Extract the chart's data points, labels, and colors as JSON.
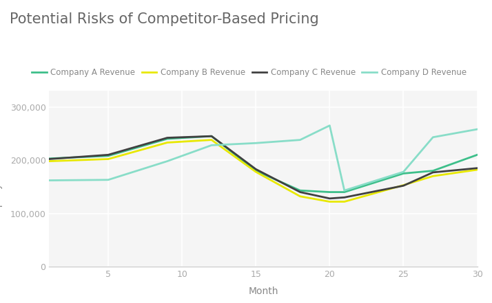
{
  "title": "Potential Risks of Competitor-Based Pricing",
  "xlabel": "Month",
  "ylabel": "Company A Revenue",
  "x": [
    1,
    5,
    9,
    12,
    15,
    18,
    20,
    21,
    25,
    27,
    30
  ],
  "company_a": [
    203000,
    208000,
    240000,
    245000,
    180000,
    143000,
    140000,
    140000,
    175000,
    180000,
    210000
  ],
  "company_b": [
    198000,
    202000,
    233000,
    238000,
    178000,
    132000,
    122000,
    122000,
    153000,
    170000,
    182000
  ],
  "company_c": [
    202000,
    210000,
    242000,
    245000,
    183000,
    140000,
    128000,
    130000,
    152000,
    177000,
    185000
  ],
  "company_d": [
    162000,
    163000,
    198000,
    228000,
    232000,
    238000,
    265000,
    143000,
    178000,
    243000,
    258000
  ],
  "colors": {
    "company_a": "#3dbf8a",
    "company_b": "#e8e800",
    "company_c": "#404040",
    "company_d": "#88ddc8"
  },
  "legend_labels": [
    "Company A Revenue",
    "Company B Revenue",
    "Company C Revenue",
    "Company D Revenue"
  ],
  "ylim": [
    0,
    330000
  ],
  "xlim": [
    1,
    30
  ],
  "bg_color": "#ffffff",
  "plot_bg_color": "#f5f5f5",
  "grid_color": "#ffffff",
  "title_fontsize": 15,
  "label_fontsize": 10,
  "tick_fontsize": 9,
  "title_color": "#666666",
  "tick_color": "#aaaaaa",
  "label_color": "#888888"
}
